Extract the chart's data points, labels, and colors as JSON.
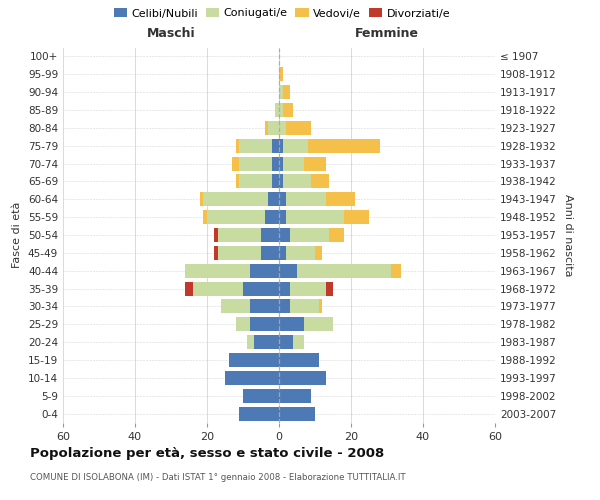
{
  "age_groups": [
    "0-4",
    "5-9",
    "10-14",
    "15-19",
    "20-24",
    "25-29",
    "30-34",
    "35-39",
    "40-44",
    "45-49",
    "50-54",
    "55-59",
    "60-64",
    "65-69",
    "70-74",
    "75-79",
    "80-84",
    "85-89",
    "90-94",
    "95-99",
    "100+"
  ],
  "birth_years": [
    "2003-2007",
    "1998-2002",
    "1993-1997",
    "1988-1992",
    "1983-1987",
    "1978-1982",
    "1973-1977",
    "1968-1972",
    "1963-1967",
    "1958-1962",
    "1953-1957",
    "1948-1952",
    "1943-1947",
    "1938-1942",
    "1933-1937",
    "1928-1932",
    "1923-1927",
    "1918-1922",
    "1913-1917",
    "1908-1912",
    "≤ 1907"
  ],
  "males": {
    "celibi": [
      11,
      10,
      15,
      14,
      7,
      8,
      8,
      10,
      8,
      5,
      5,
      4,
      3,
      2,
      2,
      2,
      0,
      0,
      0,
      0,
      0
    ],
    "coniugati": [
      0,
      0,
      0,
      0,
      2,
      4,
      8,
      14,
      18,
      12,
      12,
      16,
      18,
      9,
      9,
      9,
      3,
      1,
      0,
      0,
      0
    ],
    "vedovi": [
      0,
      0,
      0,
      0,
      0,
      0,
      0,
      0,
      0,
      0,
      0,
      1,
      1,
      1,
      2,
      1,
      1,
      0,
      0,
      0,
      0
    ],
    "divorziati": [
      0,
      0,
      0,
      0,
      0,
      0,
      0,
      2,
      0,
      1,
      1,
      0,
      0,
      0,
      0,
      0,
      0,
      0,
      0,
      0,
      0
    ]
  },
  "females": {
    "nubili": [
      10,
      9,
      13,
      11,
      4,
      7,
      3,
      3,
      5,
      2,
      3,
      2,
      2,
      1,
      1,
      1,
      0,
      0,
      0,
      0,
      0
    ],
    "coniugate": [
      0,
      0,
      0,
      0,
      3,
      8,
      8,
      10,
      26,
      8,
      11,
      16,
      11,
      8,
      6,
      7,
      2,
      1,
      1,
      0,
      0
    ],
    "vedove": [
      0,
      0,
      0,
      0,
      0,
      0,
      1,
      0,
      3,
      2,
      4,
      7,
      8,
      5,
      6,
      20,
      7,
      3,
      2,
      1,
      0
    ],
    "divorziate": [
      0,
      0,
      0,
      0,
      0,
      0,
      0,
      2,
      0,
      0,
      0,
      0,
      0,
      0,
      0,
      0,
      0,
      0,
      0,
      0,
      0
    ]
  },
  "colors": {
    "celibi": "#4d7ab5",
    "coniugati": "#c8dba0",
    "vedovi": "#f5c04a",
    "divorziati": "#c0392b"
  },
  "xlim": 60,
  "title": "Popolazione per età, sesso e stato civile - 2008",
  "subtitle": "COMUNE DI ISOLABONA (IM) - Dati ISTAT 1° gennaio 2008 - Elaborazione TUTTITALIA.IT",
  "ylabel_left": "Fasce di età",
  "ylabel_right": "Anni di nascita",
  "xlabel_maschi": "Maschi",
  "xlabel_femmine": "Femmine",
  "bg_color": "#ffffff",
  "grid_color": "#cccccc"
}
